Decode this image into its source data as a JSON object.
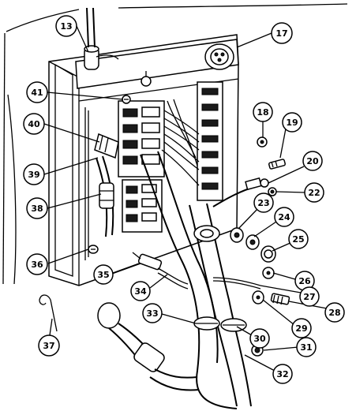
{
  "callouts": [
    {
      "id": "c13",
      "label": "13"
    },
    {
      "id": "c17",
      "label": "17"
    },
    {
      "id": "c18",
      "label": "18"
    },
    {
      "id": "c19",
      "label": "19"
    },
    {
      "id": "c20",
      "label": "20"
    },
    {
      "id": "c22",
      "label": "22"
    },
    {
      "id": "c23",
      "label": "23"
    },
    {
      "id": "c24",
      "label": "24"
    },
    {
      "id": "c25",
      "label": "25"
    },
    {
      "id": "c26",
      "label": "26"
    },
    {
      "id": "c27",
      "label": "27"
    },
    {
      "id": "c28",
      "label": "28"
    },
    {
      "id": "c29",
      "label": "29"
    },
    {
      "id": "c30",
      "label": "30"
    },
    {
      "id": "c31",
      "label": "31"
    },
    {
      "id": "c32",
      "label": "32"
    },
    {
      "id": "c33",
      "label": "33"
    },
    {
      "id": "c34",
      "label": "34"
    },
    {
      "id": "c35",
      "label": "35"
    },
    {
      "id": "c36",
      "label": "36"
    },
    {
      "id": "c37",
      "label": "37"
    },
    {
      "id": "c38",
      "label": "38"
    },
    {
      "id": "c39",
      "label": "39"
    },
    {
      "id": "c40",
      "label": "40"
    },
    {
      "id": "c41",
      "label": "41"
    }
  ]
}
